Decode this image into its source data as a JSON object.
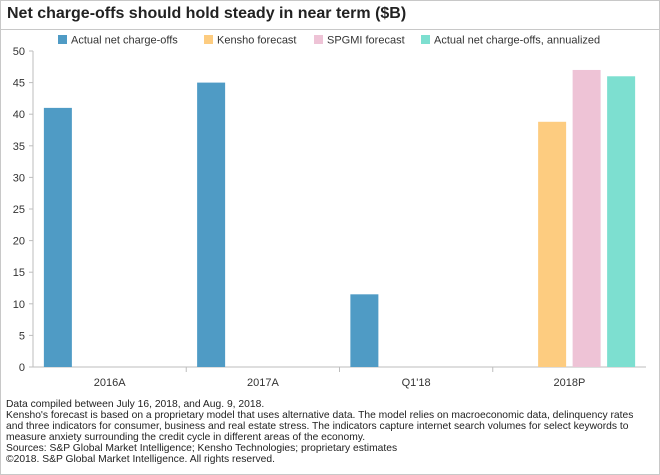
{
  "chart_data": {
    "type": "bar",
    "title": "Net charge-offs should hold steady in near term ($B)",
    "categories": [
      "2016A",
      "2017A",
      "Q1'18",
      "2018P"
    ],
    "ylim": [
      0,
      50
    ],
    "yticks": [
      0,
      5,
      10,
      15,
      20,
      25,
      30,
      35,
      40,
      45,
      50
    ],
    "grid": false,
    "legend_position": "top",
    "series": [
      {
        "name": "Actual net charge-offs",
        "color": "#4f9bc5",
        "values": [
          41,
          45,
          11.5,
          null
        ]
      },
      {
        "name": "Kensho forecast",
        "color": "#fdcc80",
        "values": [
          null,
          null,
          null,
          38.8
        ]
      },
      {
        "name": "SPGMI forecast",
        "color": "#eec3d6",
        "values": [
          null,
          null,
          null,
          47
        ]
      },
      {
        "name": "Actual net charge-offs, annualized",
        "color": "#7ddfd0",
        "values": [
          null,
          null,
          null,
          46
        ]
      }
    ]
  },
  "notes": [
    "Data compiled between July 16, 2018, and Aug. 9, 2018.",
    "Kensho's forecast is based on a proprietary model that uses alternative data. The model relies on macroeconomic data, delinquency rates",
    "and three indicators for consumer, business and real estate stress. The indicators capture internet search volumes for select keywords to",
    "measure anxiety surrounding the credit cycle in different areas of the economy.",
    "Sources: S&P Global Market Intelligence; Kensho Technologies; proprietary estimates",
    "©2018. S&P Global Market Intelligence. All rights reserved."
  ]
}
